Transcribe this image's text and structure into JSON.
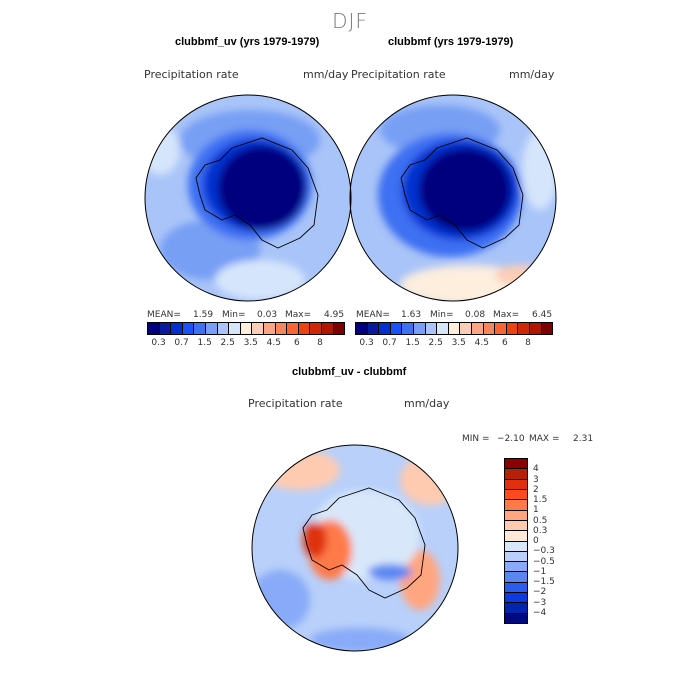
{
  "title": "DJF",
  "panels": [
    {
      "title": "clubbmf_uv (yrs 1979-1979)",
      "variable": "Precipitation rate",
      "units": "mm/day",
      "stats": {
        "mean_label": "MEAN=",
        "mean": "1.59",
        "min_label": "Min=",
        "min": "0.03",
        "max_label": "Max=",
        "max": "4.95"
      }
    },
    {
      "title": "clubbmf (yrs 1979-1979)",
      "variable": "Precipitation rate",
      "units": "mm/day",
      "stats": {
        "mean_label": "MEAN=",
        "mean": "1.63",
        "min_label": "Min=",
        "min": "0.08",
        "max_label": "Max=",
        "max": "6.45"
      }
    },
    {
      "title": "clubbmf_uv - clubbmf",
      "variable": "Precipitation rate",
      "units": "mm/day",
      "stats": {
        "min_label": "MIN =",
        "min": "−2.10",
        "max_label": "MAX =",
        "max": "2.31"
      }
    }
  ],
  "colorbar": {
    "labels": [
      "0.3",
      "0.7",
      "1.5",
      "2.5",
      "3.5",
      "4.5",
      "6",
      "8"
    ],
    "colors": [
      "#00007f",
      "#081aa0",
      "#0030d0",
      "#1a52f5",
      "#3e70f2",
      "#779ff4",
      "#a9c4f8",
      "#d5e5fb",
      "#fdeede",
      "#fccdb5",
      "#faa585",
      "#f9865a",
      "#f96634",
      "#ee420f",
      "#cf2806",
      "#ae1600",
      "#7f0000"
    ]
  },
  "diff_colorbar": {
    "labels": [
      "4",
      "3",
      "2",
      "1.5",
      "1",
      "0.5",
      "0.3",
      "0",
      "−0.3",
      "−0.5",
      "−1",
      "−1.5",
      "−2",
      "−3",
      "−4"
    ],
    "colors": [
      "#8b0000",
      "#b52008",
      "#e03010",
      "#ff4a1e",
      "#ff7a48",
      "#ffa680",
      "#ffcbb0",
      "#ffe8d8",
      "#d8e8fa",
      "#b8d0fa",
      "#88aaf8",
      "#5a86f2",
      "#2a5cf0",
      "#0a3ae0",
      "#0026b0",
      "#000a80"
    ]
  },
  "chart_data": {
    "type": "heatmap",
    "title": "DJF",
    "projection": "south-polar stereographic",
    "maps": [
      {
        "name": "clubbmf_uv (yrs 1979-1979)",
        "field": "Precipitation rate",
        "units": "mm/day",
        "mean": 1.59,
        "min": 0.03,
        "max": 4.95,
        "levels": [
          0.2,
          0.3,
          0.5,
          0.7,
          1,
          1.5,
          2,
          2.5,
          3,
          3.5,
          4,
          4.5,
          5,
          6,
          7,
          8
        ]
      },
      {
        "name": "clubbmf (yrs 1979-1979)",
        "field": "Precipitation rate",
        "units": "mm/day",
        "mean": 1.63,
        "min": 0.08,
        "max": 6.45,
        "levels": [
          0.2,
          0.3,
          0.5,
          0.7,
          1,
          1.5,
          2,
          2.5,
          3,
          3.5,
          4,
          4.5,
          5,
          6,
          7,
          8
        ]
      },
      {
        "name": "clubbmf_uv - clubbmf",
        "field": "Precipitation rate",
        "units": "mm/day",
        "min": -2.1,
        "max": 2.31,
        "levels": [
          -4,
          -3,
          -2,
          -1.5,
          -1,
          -0.5,
          -0.3,
          0,
          0.3,
          0.5,
          1,
          1.5,
          2,
          3,
          4
        ]
      }
    ]
  }
}
